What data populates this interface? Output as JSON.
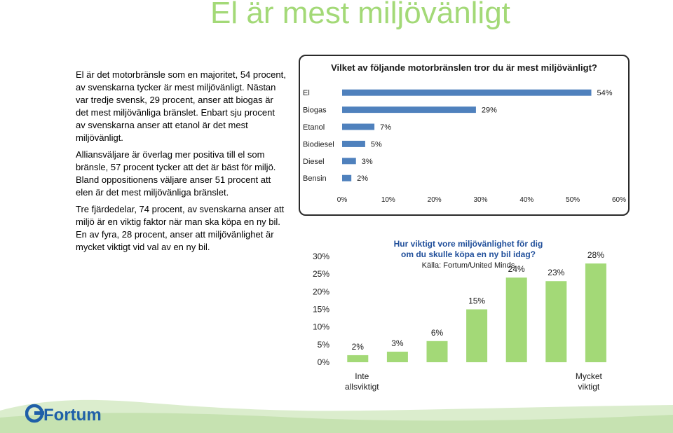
{
  "slide": {
    "title": "El är mest miljövänligt",
    "paragraphs": [
      "El är det motorbränsle som en majoritet, 54 procent, av svenskarna tycker är mest miljövänligt. Nästan var tredje svensk, 29 procent, anser att biogas är det mest miljövänliga bränslet. Enbart sju procent av svenskarna anser att etanol är det mest miljövänligt.",
      "Alliansväljare är överlag mer positiva till el som bränsle, 57 procent tycker att det är bäst för miljö. Bland oppositionens väljare anser 51 procent att elen är det mest miljövänliga bränslet.",
      "Tre fjärdedelar, 74 procent, av svenskarna anser att miljö är en viktig faktor när man ska köpa en ny bil. En av fyra, 28 procent, anser att miljövänlighet är mycket viktigt vid val av en ny bil."
    ]
  },
  "logo": {
    "text": "Fortum",
    "color": "#1f5fa8"
  },
  "colors": {
    "accent_green": "#a3d977",
    "bar_blue": "#4f81bd",
    "band_green": "#c8e3b2"
  },
  "chart_data": [
    {
      "type": "bar",
      "orientation": "horizontal",
      "title": "Vilket av följande motorbränslen tror du är mest miljövänligt?",
      "categories": [
        "El",
        "Biogas",
        "Etanol",
        "Biodiesel",
        "Diesel",
        "Bensin"
      ],
      "values": [
        54,
        29,
        7,
        5,
        3,
        2
      ],
      "data_labels": [
        "54%",
        "29%",
        "7%",
        "5%",
        "3%",
        "2%"
      ],
      "xlim": [
        0,
        60
      ],
      "x_ticks": [
        "0%",
        "10%",
        "20%",
        "30%",
        "40%",
        "50%",
        "60%"
      ],
      "grid": false,
      "legend": "none",
      "color": "#4f81bd"
    },
    {
      "type": "bar",
      "orientation": "vertical",
      "title": "Hur viktigt vore miljövänlighet för dig om du skulle köpa en ny bil idag?",
      "subtitle": "Källa: Fortum/United Minds",
      "values": [
        2,
        3,
        6,
        15,
        24,
        23,
        28
      ],
      "data_labels": [
        "2%",
        "3%",
        "6%",
        "15%",
        "24%",
        "23%",
        "28%"
      ],
      "x_labels": {
        "first": "Inte allsviktigt",
        "last": "Mycket viktigt"
      },
      "ylim": [
        0,
        30
      ],
      "y_ticks": [
        "0%",
        "5%",
        "10%",
        "15%",
        "20%",
        "25%",
        "30%"
      ],
      "grid": false,
      "legend": "none",
      "color": "#a3d977"
    }
  ]
}
